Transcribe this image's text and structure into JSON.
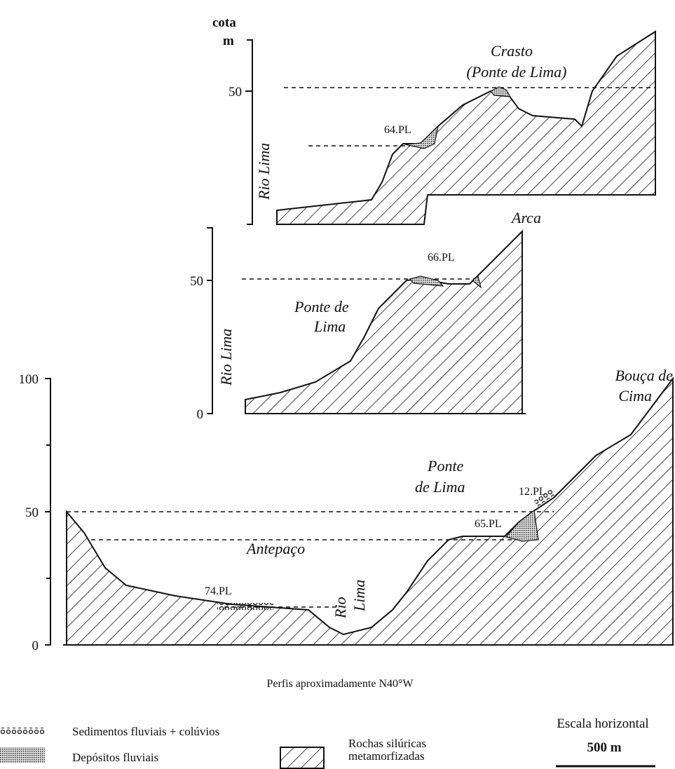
{
  "profiles": [
    {
      "axis_title": "cota",
      "axis_unit": "m",
      "ticks": [
        "50"
      ],
      "labels": {
        "river": "Rio Lima",
        "place": "Crasto",
        "place_sub": "(Ponte de Lima)",
        "sample": "64.PL"
      }
    },
    {
      "ticks": [
        "50",
        "0"
      ],
      "labels": {
        "river": "Rio Lima",
        "place": "Ponte de",
        "place_sub": "Lima",
        "sample": "66.PL",
        "summit": "Arca"
      }
    },
    {
      "ticks": [
        "100",
        "50",
        "0"
      ],
      "labels": {
        "summit": "Bouça de",
        "summit_sub": "Cima",
        "place": "Ponte",
        "place_sub": "de Lima",
        "sample_a": "12.PL",
        "sample_b": "65.PL",
        "valley": "Antepaço",
        "sample_c": "74.PL",
        "river_a": "Rio",
        "river_b": "Lima"
      }
    }
  ],
  "caption": "Perfis aproximadamente N40°W",
  "legend": {
    "items": [
      "Sedimentos fluviais + colúvios",
      "Depósitos fluviais"
    ],
    "rock_line1": "Rochas silúricas",
    "rock_line2": "metamorfizadas"
  },
  "scale": {
    "title": "Escala horizontal",
    "length": "500 m"
  }
}
